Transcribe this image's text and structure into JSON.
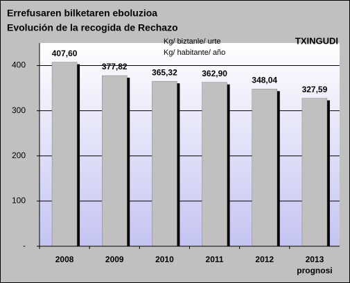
{
  "chart_data": {
    "type": "bar",
    "title": "Errefusaren bilketaren eboluzioa",
    "subtitle": "Evolución de la recogida de Rechazo",
    "units": [
      "Kg/ biztanle/ urte",
      "Kg/ habitante/ año"
    ],
    "region": "TXINGUDI",
    "categories": [
      "2008",
      "2009",
      "2010",
      "2011",
      "2012",
      "2013"
    ],
    "category_notes": [
      null,
      null,
      null,
      null,
      null,
      "prognosi"
    ],
    "values": [
      407.6,
      377.82,
      365.32,
      362.9,
      348.04,
      327.59
    ],
    "value_labels": [
      "407,60",
      "377,82",
      "365,32",
      "362,90",
      "348,04",
      "327,59"
    ],
    "color": "#c0c0c0",
    "ylim": [
      0,
      450
    ],
    "yticks": [
      {
        "value": 0,
        "label": "-"
      },
      100,
      200,
      300,
      400
    ],
    "grid": true
  }
}
